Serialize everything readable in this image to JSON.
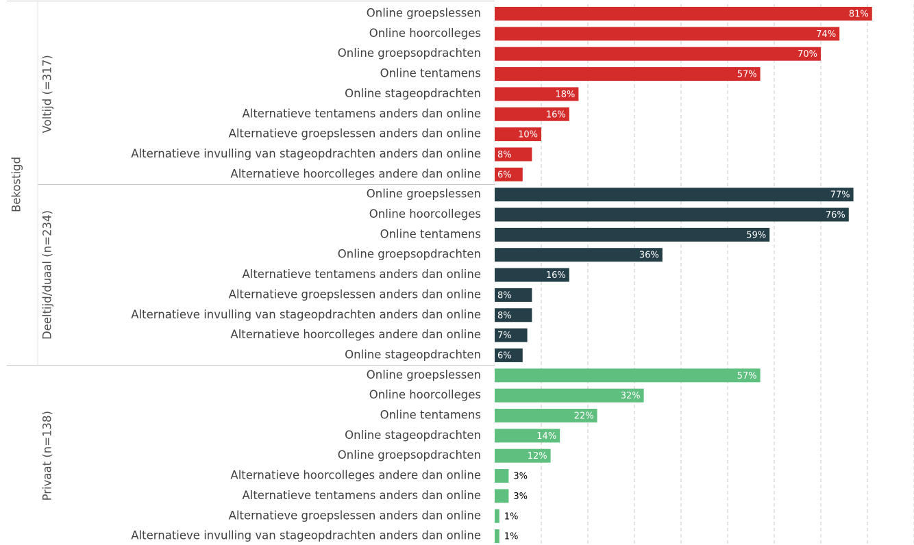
{
  "chart_data": {
    "type": "bar",
    "group_label": "Bekostigd",
    "xlim": [
      0,
      90
    ],
    "xticks": [
      10,
      20,
      30,
      40,
      50,
      60,
      70,
      80,
      90
    ],
    "grid": true,
    "series": [
      {
        "name": "Voltijd (=317)",
        "color": "#d42b2b",
        "categories": [
          "Online groepslessen",
          "Online hoorcolleges",
          "Online groepsopdrachten",
          "Online tentamens",
          "Online stageopdrachten",
          "Alternatieve tentamens anders dan online",
          "Alternatieve groepslessen anders dan online",
          "Alternatieve invulling van stageopdrachten anders dan online",
          "Alternatieve hoorcolleges andere dan online"
        ],
        "values": [
          81,
          74,
          70,
          57,
          18,
          16,
          10,
          8,
          6
        ],
        "value_labels": [
          "81%",
          "74%",
          "70%",
          "57%",
          "18%",
          "16%",
          "10%",
          "8%",
          "6%"
        ]
      },
      {
        "name": "Deeltijd/duaal (n=234)",
        "color": "#243f47",
        "categories": [
          "Online groepslessen",
          "Online hoorcolleges",
          "Online tentamens",
          "Online groepsopdrachten",
          "Alternatieve tentamens anders dan online",
          "Alternatieve groepslessen anders dan online",
          "Alternatieve invulling van stageopdrachten anders dan online",
          "Alternatieve hoorcolleges andere dan online",
          "Online stageopdrachten"
        ],
        "values": [
          77,
          76,
          59,
          36,
          16,
          8,
          8,
          7,
          6
        ],
        "value_labels": [
          "77%",
          "76%",
          "59%",
          "36%",
          "16%",
          "8%",
          "8%",
          "7%",
          "6%"
        ]
      },
      {
        "name": "Privaat (n=138)",
        "color": "#5fbf7e",
        "categories": [
          "Online groepslessen",
          "Online hoorcolleges",
          "Online tentamens",
          "Online stageopdrachten",
          "Online groepsopdrachten",
          "Alternatieve hoorcolleges andere dan online",
          "Alternatieve tentamens anders dan online",
          "Alternatieve groepslessen anders dan online",
          "Alternatieve invulling van stageopdrachten anders dan online"
        ],
        "values": [
          57,
          32,
          22,
          14,
          12,
          3,
          3,
          1,
          1
        ],
        "value_labels": [
          "57%",
          "32%",
          "22%",
          "14%",
          "12%",
          "3%",
          "3%",
          "1%",
          "1%"
        ]
      }
    ]
  }
}
